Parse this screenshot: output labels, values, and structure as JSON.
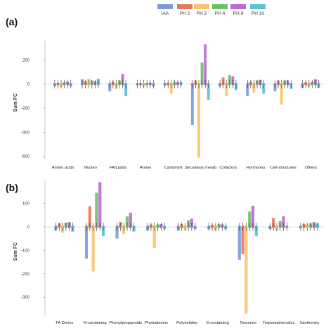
{
  "legend": [
    {
      "name": "IAA",
      "color": "#7b9bd6"
    },
    {
      "name": "PH 2",
      "color": "#e5795c"
    },
    {
      "name": "PH 3",
      "color": "#f7c46a"
    },
    {
      "name": "PH 4",
      "color": "#6cbf6a"
    },
    {
      "name": "PH 6",
      "color": "#b86ad0"
    },
    {
      "name": "PH 10",
      "color": "#59c2d6"
    }
  ],
  "chart_data": [
    {
      "panel_label": "(a)",
      "type": "bar",
      "ylabel": "Sum FC",
      "xlabel": "",
      "ylim": [
        -620,
        360
      ],
      "yticks": [
        200,
        0,
        -200,
        -400,
        -600
      ],
      "grid": false,
      "legend_position": "top-right",
      "categories": [
        "Amino acids",
        "Nucleo",
        "FA/Lipids",
        "Amine",
        "Carbohyd",
        "Secondary metab",
        "Cofactors",
        "Hormones",
        "Cell-structures",
        "Others"
      ],
      "series": [
        {
          "name": "IAA",
          "values": [
            -15,
            40,
            -60,
            -10,
            -12,
            -340,
            -20,
            -100,
            -60,
            -30
          ]
        },
        {
          "name": "PH 2",
          "values": [
            10,
            25,
            20,
            8,
            12,
            30,
            55,
            20,
            30,
            15
          ]
        },
        {
          "name": "PH 3",
          "values": [
            -25,
            45,
            -40,
            -20,
            -80,
            -610,
            -100,
            -70,
            -170,
            -25
          ]
        },
        {
          "name": "PH 4",
          "values": [
            15,
            30,
            30,
            10,
            18,
            180,
            75,
            30,
            30,
            20
          ]
        },
        {
          "name": "PH 6",
          "values": [
            20,
            25,
            85,
            12,
            15,
            330,
            65,
            35,
            30,
            40
          ]
        },
        {
          "name": "PH 10",
          "values": [
            -20,
            45,
            -100,
            -20,
            18,
            -130,
            -50,
            -80,
            -40,
            -30
          ]
        }
      ]
    },
    {
      "panel_label": "(b)",
      "type": "bar",
      "ylabel": "Sum FC",
      "xlabel": "",
      "ylim": [
        -380,
        200
      ],
      "yticks": [
        100,
        0,
        -100,
        -200,
        -300
      ],
      "grid": false,
      "categories": [
        "FA Derivs",
        "N-containing",
        "Phenylpropanoids",
        "Phytoalexins",
        "Polyketides",
        "S-containing",
        "Terpenes",
        "Terpenophenolics",
        "Xanthenes"
      ],
      "series": [
        {
          "name": "IAA",
          "values": [
            -15,
            -135,
            -50,
            -15,
            -15,
            -10,
            -140,
            -10,
            -5
          ]
        },
        {
          "name": "PH 2",
          "values": [
            15,
            88,
            20,
            10,
            12,
            8,
            -115,
            38,
            12
          ]
        },
        {
          "name": "PH 3",
          "values": [
            -25,
            -190,
            -30,
            -90,
            -15,
            -15,
            -370,
            -15,
            10
          ]
        },
        {
          "name": "PH 4",
          "values": [
            18,
            145,
            45,
            10,
            28,
            12,
            65,
            25,
            15
          ]
        },
        {
          "name": "PH 6",
          "values": [
            20,
            190,
            60,
            12,
            35,
            10,
            90,
            45,
            20
          ]
        },
        {
          "name": "PH 10",
          "values": [
            -20,
            -40,
            -20,
            -10,
            -10,
            -10,
            -40,
            -5,
            15
          ]
        }
      ]
    }
  ]
}
